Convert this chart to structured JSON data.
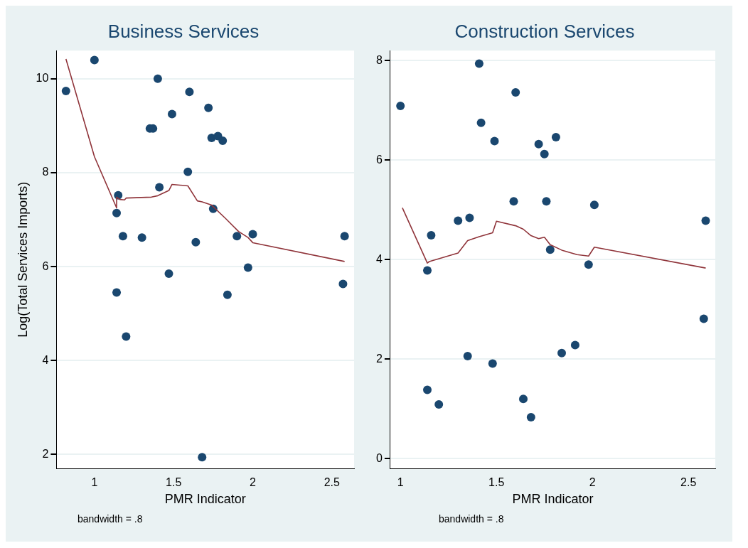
{
  "chart_data": [
    {
      "type": "scatter",
      "title": "Business Services",
      "xlabel": "PMR Indicator",
      "ylabel": "Log(Total Services Imports)",
      "xlim": [
        0.76,
        2.64
      ],
      "ylim": [
        1.7,
        10.6
      ],
      "xticks": [
        1,
        1.5,
        2,
        2.5
      ],
      "yticks": [
        2,
        4,
        6,
        8,
        10
      ],
      "grid": "y",
      "legend": false,
      "annotations": [
        "bandwidth = .8"
      ],
      "series": [
        {
          "type": "scatter",
          "color": "#1a476f",
          "marker": "circle",
          "x": [
            0.82,
            1.0,
            1.15,
            1.14,
            1.18,
            1.3,
            1.4,
            1.41,
            1.35,
            1.37,
            1.49,
            1.6,
            1.59,
            1.72,
            1.74,
            1.78,
            1.81,
            1.75,
            1.9,
            2.0,
            2.58,
            1.64,
            1.14,
            1.2,
            1.47,
            1.84,
            1.97,
            2.57,
            1.68
          ],
          "values": [
            9.74,
            10.4,
            7.52,
            7.14,
            6.65,
            6.62,
            10.0,
            7.69,
            8.94,
            8.94,
            9.25,
            9.72,
            8.02,
            9.38,
            8.74,
            8.78,
            8.68,
            7.23,
            6.65,
            6.69,
            6.65,
            6.52,
            5.45,
            4.51,
            5.85,
            5.4,
            5.98,
            5.63,
            1.94
          ]
        },
        {
          "type": "line",
          "color": "#90353b",
          "marker": "none",
          "x": [
            0.82,
            1.0,
            1.14,
            1.14,
            1.16,
            1.19,
            1.2,
            1.36,
            1.4,
            1.47,
            1.49,
            1.59,
            1.65,
            1.68,
            1.74,
            1.83,
            1.91,
            1.97,
            2.0,
            2.58
          ],
          "values": [
            10.42,
            8.34,
            7.25,
            7.48,
            7.43,
            7.42,
            7.46,
            7.48,
            7.51,
            7.62,
            7.75,
            7.72,
            7.4,
            7.38,
            7.31,
            7.02,
            6.75,
            6.62,
            6.51,
            6.11
          ]
        }
      ]
    },
    {
      "type": "scatter",
      "title": "Construction Services",
      "xlabel": "PMR Indicator",
      "xlim": [
        0.947,
        2.64
      ],
      "ylim": [
        -0.2,
        8.2
      ],
      "xticks": [
        1,
        1.5,
        2,
        2.5
      ],
      "yticks": [
        0,
        2,
        4,
        6,
        8
      ],
      "grid": "y",
      "legend": false,
      "annotations": [
        "bandwidth = .8"
      ],
      "series": [
        {
          "type": "scatter",
          "color": "#1a476f",
          "marker": "circle",
          "x": [
            1.0,
            1.41,
            1.6,
            1.42,
            1.49,
            1.72,
            1.75,
            1.81,
            1.59,
            1.76,
            2.01,
            1.36,
            1.3,
            1.16,
            2.59,
            1.78,
            1.98,
            1.14,
            2.58,
            1.35,
            1.48,
            1.84,
            1.91,
            1.14,
            1.2,
            1.64,
            1.68
          ],
          "values": [
            7.09,
            7.94,
            7.36,
            6.75,
            6.38,
            6.32,
            6.12,
            6.46,
            5.17,
            5.17,
            5.1,
            4.84,
            4.78,
            4.49,
            4.78,
            4.2,
            3.9,
            3.78,
            2.81,
            2.06,
            1.91,
            2.12,
            2.28,
            1.38,
            1.09,
            1.2,
            0.83
          ]
        },
        {
          "type": "line",
          "color": "#90353b",
          "marker": "none",
          "x": [
            1.01,
            1.14,
            1.15,
            1.3,
            1.35,
            1.41,
            1.48,
            1.5,
            1.6,
            1.64,
            1.68,
            1.72,
            1.75,
            1.78,
            1.84,
            1.92,
            1.98,
            2.01,
            2.59
          ],
          "values": [
            5.04,
            3.93,
            3.96,
            4.13,
            4.38,
            4.46,
            4.54,
            4.77,
            4.68,
            4.61,
            4.48,
            4.42,
            4.45,
            4.3,
            4.19,
            4.1,
            4.07,
            4.25,
            3.83
          ]
        }
      ]
    }
  ]
}
